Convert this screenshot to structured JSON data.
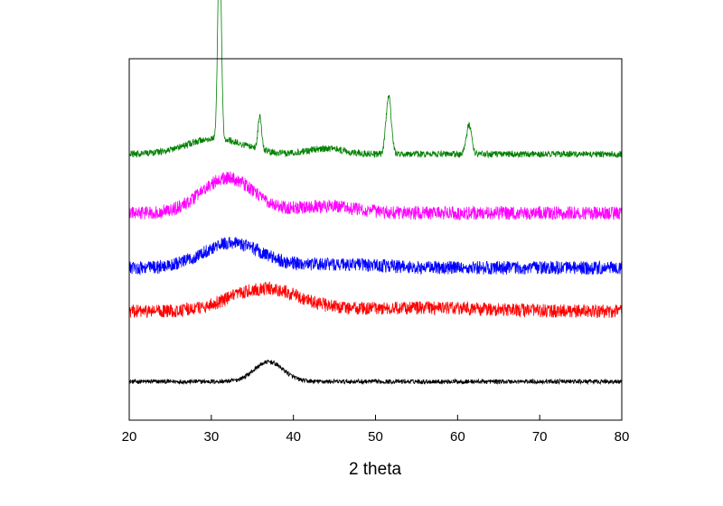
{
  "chart_data": {
    "type": "line",
    "xlabel": "2 theta",
    "ylabel": "",
    "xlim": [
      20,
      80
    ],
    "x_ticks": [
      "20",
      "30",
      "40",
      "50",
      "60",
      "70",
      "80"
    ],
    "y_ticks_labeled": false,
    "grid": false,
    "legend": "none",
    "series": [
      {
        "color": "#000000",
        "baseline": 0.0,
        "noise": 0.04,
        "features": [
          {
            "center": 37.0,
            "width": 2.5,
            "height": 0.28
          }
        ]
      },
      {
        "color": "#ff0000",
        "baseline": 1.0,
        "noise": 0.12,
        "features": [
          {
            "center": 36.5,
            "width": 6.0,
            "height": 0.32
          },
          {
            "center": 55.0,
            "width": 12.0,
            "height": 0.05
          }
        ]
      },
      {
        "color": "#0000ff",
        "baseline": 1.62,
        "noise": 0.12,
        "features": [
          {
            "center": 32.5,
            "width": 5.0,
            "height": 0.35
          },
          {
            "center": 45.0,
            "width": 8.0,
            "height": 0.05
          }
        ]
      },
      {
        "color": "#ff00ff",
        "baseline": 2.4,
        "noise": 0.12,
        "features": [
          {
            "center": 32.0,
            "width": 4.5,
            "height": 0.5
          },
          {
            "center": 44.0,
            "width": 5.0,
            "height": 0.1
          }
        ]
      },
      {
        "color": "#008000",
        "baseline": 3.24,
        "noise": 0.06,
        "features": [
          {
            "center": 30.5,
            "width": 5.0,
            "height": 0.22
          },
          {
            "center": 31.0,
            "width": 0.3,
            "height": 2.9
          },
          {
            "center": 35.9,
            "width": 0.3,
            "height": 0.48
          },
          {
            "center": 44.0,
            "width": 3.0,
            "height": 0.08
          },
          {
            "center": 51.6,
            "width": 0.45,
            "height": 0.82
          },
          {
            "center": 61.4,
            "width": 0.45,
            "height": 0.42
          }
        ]
      }
    ],
    "ylim": [
      -0.55,
      4.6
    ]
  }
}
